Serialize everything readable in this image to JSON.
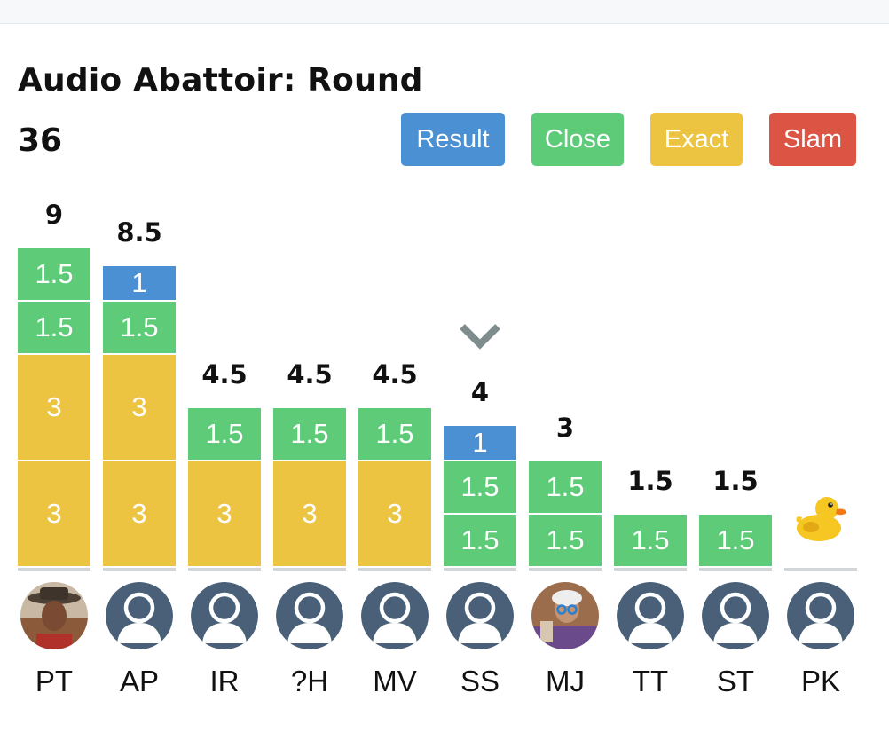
{
  "header": {
    "title": "Audio Abattoir: Round",
    "round_number": "36"
  },
  "legend": [
    {
      "key": "result",
      "label": "Result",
      "color": "#4a90d3"
    },
    {
      "key": "close",
      "label": "Close",
      "color": "#5ecb78"
    },
    {
      "key": "exact",
      "label": "Exact",
      "color": "#ecc441"
    },
    {
      "key": "slam",
      "label": "Slam",
      "color": "#dc5443"
    }
  ],
  "chart_data": {
    "type": "bar",
    "stacked": true,
    "title": "Audio Abattoir: Round 36",
    "categories": [
      "PT",
      "AP",
      "IR",
      "?H",
      "MV",
      "SS",
      "MJ",
      "TT",
      "ST",
      "PK"
    ],
    "totals": [
      "9",
      "8.5",
      "4.5",
      "4.5",
      "4.5",
      "4",
      "3",
      "1.5",
      "1.5",
      ""
    ],
    "stacks": [
      [
        {
          "type": "exact",
          "value": 3
        },
        {
          "type": "exact",
          "value": 3
        },
        {
          "type": "close",
          "value": 1.5
        },
        {
          "type": "close",
          "value": 1.5
        }
      ],
      [
        {
          "type": "exact",
          "value": 3
        },
        {
          "type": "exact",
          "value": 3
        },
        {
          "type": "close",
          "value": 1.5
        },
        {
          "type": "result",
          "value": 1
        }
      ],
      [
        {
          "type": "exact",
          "value": 3
        },
        {
          "type": "close",
          "value": 1.5
        }
      ],
      [
        {
          "type": "exact",
          "value": 3
        },
        {
          "type": "close",
          "value": 1.5
        }
      ],
      [
        {
          "type": "exact",
          "value": 3
        },
        {
          "type": "close",
          "value": 1.5
        }
      ],
      [
        {
          "type": "close",
          "value": 1.5
        },
        {
          "type": "close",
          "value": 1.5
        },
        {
          "type": "result",
          "value": 1
        }
      ],
      [
        {
          "type": "close",
          "value": 1.5
        },
        {
          "type": "close",
          "value": 1.5
        }
      ],
      [
        {
          "type": "close",
          "value": 1.5
        }
      ],
      [
        {
          "type": "close",
          "value": 1.5
        }
      ],
      []
    ],
    "avatars": [
      "photo",
      "default",
      "default",
      "default",
      "default",
      "default",
      "photo",
      "default",
      "default",
      "default"
    ],
    "marker_player": "SS",
    "zero_score_icon": "rubber-duck-icon"
  }
}
